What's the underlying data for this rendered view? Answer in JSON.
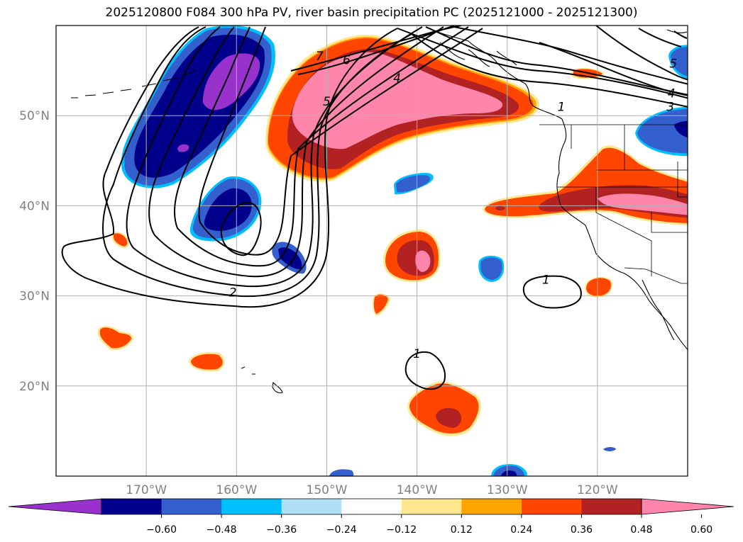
{
  "title": "2025120800 F084 300 hPa PV, river basin precipitation PC (2025121000 - 2025121300)",
  "map": {
    "lon_range": [
      -180,
      -110
    ],
    "lat_range": [
      10,
      60
    ],
    "lon_ticks": [
      {
        "value": -170,
        "label": "170°W"
      },
      {
        "value": -160,
        "label": "160°W"
      },
      {
        "value": -150,
        "label": "150°W"
      },
      {
        "value": -140,
        "label": "140°W"
      },
      {
        "value": -130,
        "label": "130°W"
      },
      {
        "value": -120,
        "label": "120°W"
      }
    ],
    "lat_ticks": [
      {
        "value": 50,
        "label": "50°N"
      },
      {
        "value": 40,
        "label": "40°N"
      },
      {
        "value": 30,
        "label": "30°N"
      },
      {
        "value": 20,
        "label": "20°N"
      }
    ],
    "grid": true,
    "contour_labels": [
      {
        "text": "7",
        "lon": -150.8,
        "lat": 56.6
      },
      {
        "text": "6",
        "lon": -147.8,
        "lat": 56.2
      },
      {
        "text": "5",
        "lon": -150.0,
        "lat": 51.6
      },
      {
        "text": "4",
        "lon": -142.2,
        "lat": 54.2
      },
      {
        "text": "1",
        "lon": -124.0,
        "lat": 51.0
      },
      {
        "text": "5",
        "lon": -111.6,
        "lat": 55.8
      },
      {
        "text": "4",
        "lon": -111.8,
        "lat": 52.5
      },
      {
        "text": "3",
        "lon": -111.9,
        "lat": 51.0
      },
      {
        "text": "2",
        "lon": -160.4,
        "lat": 30.4
      },
      {
        "text": "1",
        "lon": -125.7,
        "lat": 31.8
      },
      {
        "text": "1",
        "lon": -140.0,
        "lat": 23.6
      }
    ]
  },
  "colorbar": {
    "tick_labels": [
      "−0.60",
      "−0.48",
      "−0.36",
      "−0.24",
      "−0.12",
      "0.12",
      "0.24",
      "0.36",
      "0.48",
      "0.60"
    ],
    "colors": [
      "#9932cc",
      "#00008b",
      "#3460cd",
      "#00bfff",
      "#afe0f8",
      "#ffffff",
      "#ffe68f",
      "#ffa500",
      "#ff4500",
      "#b22222",
      "#ff85aa"
    ]
  }
}
